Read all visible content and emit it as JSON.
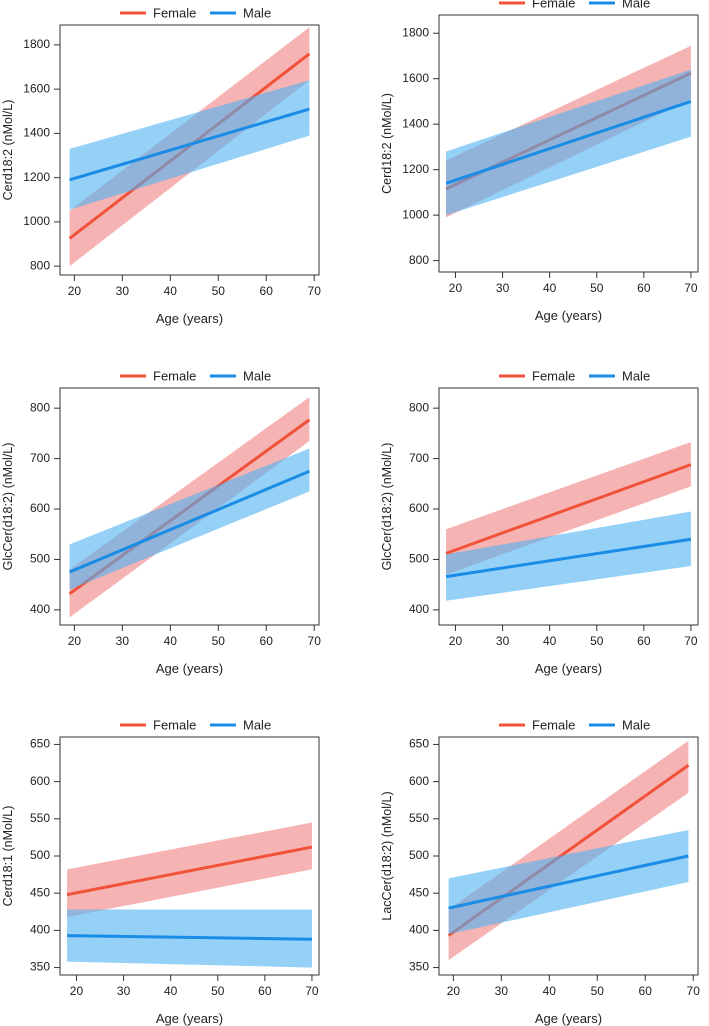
{
  "legend": {
    "female": "Female",
    "male": "Male"
  },
  "colors": {
    "female_line": "#F0523A",
    "female_band": "#F08080",
    "male_line": "#1A8CE6",
    "male_band": "#4FB0F2",
    "axis": "#333333"
  },
  "chart_data": [
    {
      "type": "line",
      "title": "",
      "xlabel": "Age (years)",
      "ylabel": "Cerd18:2 (nMol/L)",
      "xlim": [
        17,
        71
      ],
      "ylim": [
        760,
        1890
      ],
      "xticks": [
        20,
        30,
        40,
        50,
        60,
        70
      ],
      "yticks": [
        800,
        1000,
        1200,
        1400,
        1600,
        1800
      ],
      "series": [
        {
          "name": "Female",
          "x": [
            19,
            69
          ],
          "fit": [
            925,
            1760
          ],
          "lower": [
            800,
            1640
          ],
          "upper": [
            1050,
            1880
          ]
        },
        {
          "name": "Male",
          "x": [
            19,
            69
          ],
          "fit": [
            1190,
            1510
          ],
          "lower": [
            1055,
            1390
          ],
          "upper": [
            1330,
            1640
          ]
        }
      ]
    },
    {
      "type": "line",
      "title": "",
      "xlabel": "Age (years)",
      "ylabel": "Cerd18:2 (nMol/L)",
      "xlim": [
        16.5,
        71.5
      ],
      "ylim": [
        750,
        1880
      ],
      "xticks": [
        20,
        30,
        40,
        50,
        60,
        70
      ],
      "yticks": [
        800,
        1000,
        1200,
        1400,
        1600,
        1800
      ],
      "series": [
        {
          "name": "Female",
          "x": [
            18,
            70
          ],
          "fit": [
            1115,
            1625
          ],
          "lower": [
            990,
            1510
          ],
          "upper": [
            1240,
            1745
          ]
        },
        {
          "name": "Male",
          "x": [
            18,
            70
          ],
          "fit": [
            1140,
            1500
          ],
          "lower": [
            1000,
            1345
          ],
          "upper": [
            1280,
            1640
          ]
        }
      ]
    },
    {
      "type": "line",
      "title": "",
      "xlabel": "Age (years)",
      "ylabel": "GlcCer(d18:2) (nMol/L)",
      "xlim": [
        17,
        71
      ],
      "ylim": [
        370,
        840
      ],
      "xticks": [
        20,
        30,
        40,
        50,
        60,
        70
      ],
      "yticks": [
        400,
        500,
        600,
        700,
        800
      ],
      "series": [
        {
          "name": "Female",
          "x": [
            19,
            69
          ],
          "fit": [
            432,
            777
          ],
          "lower": [
            385,
            735
          ],
          "upper": [
            480,
            822
          ]
        },
        {
          "name": "Male",
          "x": [
            19,
            69
          ],
          "fit": [
            475,
            675
          ],
          "lower": [
            440,
            635
          ],
          "upper": [
            530,
            720
          ]
        }
      ]
    },
    {
      "type": "line",
      "title": "",
      "xlabel": "Age (years)",
      "ylabel": "GlcCer(d18:2) (nMol/L)",
      "xlim": [
        16.5,
        71.5
      ],
      "ylim": [
        370,
        840
      ],
      "xticks": [
        20,
        30,
        40,
        50,
        60,
        70
      ],
      "yticks": [
        400,
        500,
        600,
        700,
        800
      ],
      "series": [
        {
          "name": "Female",
          "x": [
            18,
            70
          ],
          "fit": [
            512,
            688
          ],
          "lower": [
            470,
            645
          ],
          "upper": [
            560,
            733
          ]
        },
        {
          "name": "Male",
          "x": [
            18,
            70
          ],
          "fit": [
            466,
            540
          ],
          "lower": [
            418,
            487
          ],
          "upper": [
            510,
            595
          ]
        }
      ]
    },
    {
      "type": "line",
      "title": "",
      "xlabel": "Age (years)",
      "ylabel": "Cerd18:1 (nMol/L)",
      "xlim": [
        16.5,
        71.5
      ],
      "ylim": [
        340,
        660
      ],
      "xticks": [
        20,
        30,
        40,
        50,
        60,
        70
      ],
      "yticks": [
        350,
        400,
        450,
        500,
        550,
        600,
        650
      ],
      "series": [
        {
          "name": "Female",
          "x": [
            18,
            70
          ],
          "fit": [
            448,
            512
          ],
          "lower": [
            418,
            482
          ],
          "upper": [
            482,
            545
          ]
        },
        {
          "name": "Male",
          "x": [
            18,
            70
          ],
          "fit": [
            393,
            388
          ],
          "lower": [
            358,
            350
          ],
          "upper": [
            428,
            428
          ]
        }
      ]
    },
    {
      "type": "line",
      "title": "",
      "xlabel": "Age (years)",
      "ylabel": "LacCer(d18:2) (nMol/L)",
      "xlim": [
        17,
        71
      ],
      "ylim": [
        340,
        660
      ],
      "xticks": [
        20,
        30,
        40,
        50,
        60,
        70
      ],
      "yticks": [
        350,
        400,
        450,
        500,
        550,
        600,
        650
      ],
      "series": [
        {
          "name": "Female",
          "x": [
            19,
            69
          ],
          "fit": [
            393,
            622
          ],
          "lower": [
            360,
            585
          ],
          "upper": [
            428,
            655
          ]
        },
        {
          "name": "Male",
          "x": [
            19,
            69
          ],
          "fit": [
            430,
            500
          ],
          "lower": [
            395,
            465
          ],
          "upper": [
            470,
            535
          ]
        }
      ]
    }
  ]
}
